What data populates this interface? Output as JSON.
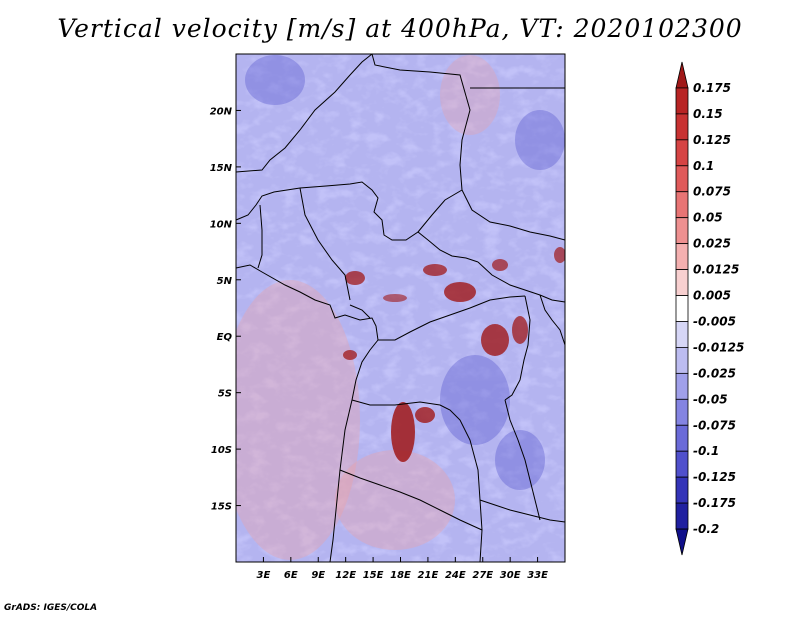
{
  "title": "Vertical velocity [m/s] at 400hPa, VT: 2020102300",
  "footer": "GrADS: IGES/COLA",
  "map": {
    "lon_range": [
      0,
      36
    ],
    "lat_range": [
      -20,
      25
    ],
    "lon_ticks": [
      {
        "value": 3,
        "label": "3E"
      },
      {
        "value": 6,
        "label": "6E"
      },
      {
        "value": 9,
        "label": "9E"
      },
      {
        "value": 12,
        "label": "12E"
      },
      {
        "value": 15,
        "label": "15E"
      },
      {
        "value": 18,
        "label": "18E"
      },
      {
        "value": 21,
        "label": "21E"
      },
      {
        "value": 24,
        "label": "24E"
      },
      {
        "value": 27,
        "label": "27E"
      },
      {
        "value": 30,
        "label": "30E"
      },
      {
        "value": 33,
        "label": "33E"
      }
    ],
    "lat_ticks": [
      {
        "value": 20,
        "label": "20N"
      },
      {
        "value": 15,
        "label": "15N"
      },
      {
        "value": 10,
        "label": "10N"
      },
      {
        "value": 5,
        "label": "5N"
      },
      {
        "value": 0,
        "label": "EQ"
      },
      {
        "value": -5,
        "label": "5S"
      },
      {
        "value": -10,
        "label": "10S"
      },
      {
        "value": -15,
        "label": "15S"
      }
    ]
  },
  "colorbar": {
    "labels": [
      "0.175",
      "0.15",
      "0.125",
      "0.1",
      "0.075",
      "0.05",
      "0.025",
      "0.0125",
      "0.005",
      "-0.005",
      "-0.0125",
      "-0.025",
      "-0.05",
      "-0.075",
      "-0.1",
      "-0.125",
      "-0.175",
      "-0.2"
    ],
    "colors": [
      "#a01818",
      "#b82424",
      "#c83232",
      "#d64444",
      "#e05a5a",
      "#e87474",
      "#ee9090",
      "#f4b0b0",
      "#f8d0d0",
      "#ffffff",
      "#d6d6f6",
      "#bcbcf0",
      "#a0a0ea",
      "#8484e2",
      "#6a6ad8",
      "#5050cc",
      "#3434b8",
      "#2020a0",
      "#10108a"
    ]
  }
}
